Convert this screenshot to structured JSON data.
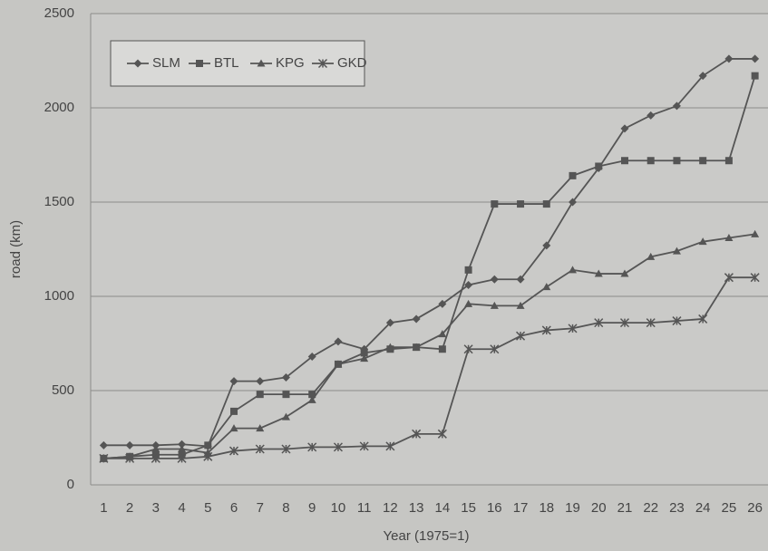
{
  "chart_data": {
    "type": "line",
    "x_label": "Year (1975=1)",
    "y_label": "road (km)",
    "categories": [
      "1",
      "2",
      "3",
      "4",
      "5",
      "6",
      "7",
      "8",
      "9",
      "10",
      "11",
      "12",
      "13",
      "14",
      "15",
      "16",
      "17",
      "18",
      "19",
      "20",
      "21",
      "22",
      "23",
      "24",
      "25",
      "26"
    ],
    "ylim": [
      0,
      2500
    ],
    "yticks": [
      0,
      500,
      1000,
      1500,
      2000,
      2500
    ],
    "grid": true,
    "legend": "top-left",
    "series": [
      {
        "name": "SLM",
        "color": "#555555",
        "marker": "diamond",
        "values": [
          210,
          210,
          210,
          215,
          205,
          550,
          550,
          570,
          680,
          760,
          720,
          860,
          880,
          960,
          1060,
          1090,
          1090,
          1270,
          1500,
          1680,
          1890,
          1960,
          2010,
          2170,
          2260,
          2260
        ]
      },
      {
        "name": "BTL",
        "color": "#555555",
        "marker": "square",
        "values": [
          140,
          150,
          160,
          160,
          210,
          390,
          480,
          480,
          480,
          640,
          700,
          720,
          730,
          720,
          1140,
          1490,
          1490,
          1490,
          1640,
          1690,
          1720,
          1720,
          1720,
          1720,
          1720,
          2170
        ]
      },
      {
        "name": "KPG",
        "color": "#555555",
        "marker": "triangle",
        "values": [
          140,
          150,
          190,
          190,
          170,
          300,
          300,
          360,
          450,
          640,
          670,
          730,
          730,
          800,
          960,
          950,
          950,
          1050,
          1140,
          1120,
          1120,
          1210,
          1240,
          1290,
          1310,
          1330
        ]
      },
      {
        "name": "GKD",
        "color": "#555555",
        "marker": "asterisk",
        "values": [
          140,
          140,
          140,
          140,
          150,
          180,
          190,
          190,
          200,
          200,
          205,
          205,
          270,
          270,
          720,
          720,
          790,
          820,
          830,
          860,
          860,
          860,
          870,
          880,
          1100,
          1100
        ]
      }
    ]
  }
}
